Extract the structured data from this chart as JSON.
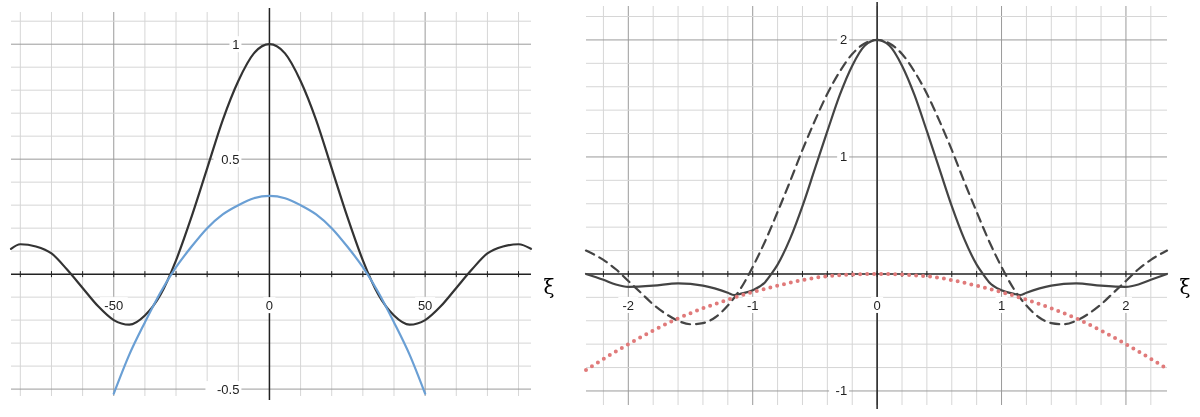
{
  "chart_data": [
    {
      "type": "line",
      "xlabel": "ξ",
      "xlim": [
        -83,
        84
      ],
      "ylim": [
        -0.53,
        1.14
      ],
      "grid": true,
      "xticks": [
        {
          "value": -80,
          "label": null
        },
        {
          "value": -70,
          "label": null
        },
        {
          "value": -60,
          "label": null
        },
        -50,
        {
          "value": -40,
          "label": null
        },
        {
          "value": -30,
          "label": null
        },
        {
          "value": -20,
          "label": null
        },
        {
          "value": -10,
          "label": null
        },
        0,
        {
          "value": 10,
          "label": null
        },
        {
          "value": 20,
          "label": null
        },
        {
          "value": 30,
          "label": null
        },
        {
          "value": 40,
          "label": null
        },
        50,
        {
          "value": 60,
          "label": null
        },
        {
          "value": 70,
          "label": null
        },
        {
          "value": 80,
          "label": null
        }
      ],
      "yticks": [
        -0.5,
        {
          "value": -0.4,
          "label": null
        },
        {
          "value": -0.3,
          "label": null
        },
        {
          "value": -0.2,
          "label": null
        },
        {
          "value": -0.1,
          "label": null
        },
        {
          "value": 0.1,
          "label": null
        },
        {
          "value": 0.2,
          "label": null
        },
        {
          "value": 0.3,
          "label": null
        },
        {
          "value": 0.4,
          "label": null
        },
        0.5,
        {
          "value": 0.6,
          "label": null
        },
        {
          "value": 0.7,
          "label": null
        },
        {
          "value": 0.8,
          "label": null
        },
        {
          "value": 0.9,
          "label": null
        },
        1,
        {
          "value": 1.1,
          "label": null
        }
      ],
      "series": [
        {
          "color": "#333333",
          "line_style": "solid",
          "x": [
            -83,
            -80,
            -75,
            -70,
            -65,
            -60,
            -55,
            -50,
            -45,
            -40,
            -35,
            -30,
            -25,
            -20,
            -15,
            -10,
            -5,
            0,
            5,
            10,
            15,
            20,
            25,
            30,
            35,
            40,
            45,
            50,
            55,
            60,
            65,
            70,
            75,
            80,
            84
          ],
          "values": [
            0.11,
            0.13,
            0.12,
            0.09,
            0.02,
            -0.06,
            -0.14,
            -0.2,
            -0.22,
            -0.18,
            -0.09,
            0.06,
            0.25,
            0.46,
            0.67,
            0.84,
            0.96,
            1,
            0.96,
            0.84,
            0.67,
            0.46,
            0.25,
            0.06,
            -0.09,
            -0.18,
            -0.22,
            -0.2,
            -0.14,
            -0.06,
            0.02,
            0.09,
            0.12,
            0.13,
            0.11
          ]
        },
        {
          "color": "#6a9fd4",
          "line_style": "solid",
          "x": [
            -50,
            -45,
            -40,
            -35,
            -30,
            -25,
            -20,
            -15,
            -10,
            -5,
            0,
            5,
            10,
            15,
            20,
            25,
            30,
            35,
            40,
            45,
            50
          ],
          "values": [
            -0.52,
            -0.35,
            -0.21,
            -0.08,
            0.03,
            0.12,
            0.2,
            0.26,
            0.3,
            0.33,
            0.34,
            0.33,
            0.3,
            0.26,
            0.2,
            0.12,
            0.03,
            -0.08,
            -0.21,
            -0.35,
            -0.52
          ]
        }
      ]
    },
    {
      "type": "line",
      "xlabel": "ξ",
      "xlim": [
        -2.34,
        2.33
      ],
      "ylim": [
        -1.12,
        2.29
      ],
      "grid": true,
      "xticks": [
        {
          "value": -2.2,
          "label": null
        },
        -2,
        {
          "value": -1.8,
          "label": null
        },
        {
          "value": -1.6,
          "label": null
        },
        {
          "value": -1.4,
          "label": null
        },
        {
          "value": -1.2,
          "label": null
        },
        -1,
        {
          "value": -0.8,
          "label": null
        },
        {
          "value": -0.6,
          "label": null
        },
        {
          "value": -0.4,
          "label": null
        },
        {
          "value": -0.2,
          "label": null
        },
        0,
        {
          "value": 0.2,
          "label": null
        },
        {
          "value": 0.4,
          "label": null
        },
        {
          "value": 0.6,
          "label": null
        },
        {
          "value": 0.8,
          "label": null
        },
        1,
        {
          "value": 1.2,
          "label": null
        },
        {
          "value": 1.4,
          "label": null
        },
        {
          "value": 1.6,
          "label": null
        },
        {
          "value": 1.8,
          "label": null
        },
        2,
        {
          "value": 2.2,
          "label": null
        }
      ],
      "yticks": [
        -1,
        {
          "value": -0.8,
          "label": null
        },
        {
          "value": -0.6,
          "label": null
        },
        {
          "value": -0.4,
          "label": null
        },
        {
          "value": -0.2,
          "label": null
        },
        {
          "value": 0.2,
          "label": null
        },
        {
          "value": 0.4,
          "label": null
        },
        {
          "value": 0.6,
          "label": null
        },
        {
          "value": 0.8,
          "label": null
        },
        1,
        {
          "value": 1.2,
          "label": null
        },
        {
          "value": 1.4,
          "label": null
        },
        {
          "value": 1.6,
          "label": null
        },
        {
          "value": 1.8,
          "label": null
        },
        2,
        {
          "value": 2.2,
          "label": null
        }
      ],
      "series": [
        {
          "color": "#444444",
          "line_style": "solid",
          "x": [
            -2.34,
            -2.2,
            -2.1,
            -2,
            -1.8,
            -1.6,
            -1.4,
            -1.2,
            -1.15,
            -1.1,
            -1,
            -0.9,
            -0.85,
            -0.8,
            -0.7,
            -0.6,
            -0.5,
            -0.4,
            -0.3,
            -0.2,
            -0.1,
            0,
            0.1,
            0.2,
            0.3,
            0.4,
            0.5,
            0.6,
            0.7,
            0.8,
            0.85,
            0.9,
            1,
            1.1,
            1.15,
            1.2,
            1.4,
            1.6,
            1.8,
            2,
            2.1,
            2.2,
            2.33
          ],
          "values": [
            0,
            -0.05,
            -0.09,
            -0.11,
            -0.1,
            -0.08,
            -0.1,
            -0.16,
            -0.18,
            -0.17,
            -0.14,
            -0.07,
            0,
            0.08,
            0.3,
            0.58,
            0.9,
            1.22,
            1.53,
            1.78,
            1.95,
            2,
            1.95,
            1.78,
            1.53,
            1.22,
            0.9,
            0.58,
            0.3,
            0.08,
            0,
            -0.07,
            -0.14,
            -0.17,
            -0.18,
            -0.16,
            -0.1,
            -0.08,
            -0.1,
            -0.11,
            -0.09,
            -0.05,
            0
          ]
        },
        {
          "color": "#444444",
          "line_style": "dashed",
          "x": [
            -2.34,
            -2.2,
            -2.1,
            -2,
            -1.9,
            -1.8,
            -1.7,
            -1.6,
            -1.5,
            -1.4,
            -1.3,
            -1.2,
            -1.1,
            -1,
            -0.9,
            -0.8,
            -0.7,
            -0.6,
            -0.5,
            -0.4,
            -0.3,
            -0.2,
            -0.1,
            0,
            0.1,
            0.2,
            0.3,
            0.4,
            0.5,
            0.6,
            0.7,
            0.8,
            0.9,
            1,
            1.1,
            1.2,
            1.3,
            1.4,
            1.5,
            1.6,
            1.7,
            1.8,
            1.9,
            2,
            2.1,
            2.2,
            2.33
          ],
          "values": [
            0.2,
            0.12,
            0.04,
            -0.06,
            -0.16,
            -0.26,
            -0.34,
            -0.4,
            -0.43,
            -0.42,
            -0.37,
            -0.27,
            -0.13,
            0.06,
            0.28,
            0.53,
            0.79,
            1.06,
            1.31,
            1.54,
            1.73,
            1.88,
            1.97,
            2,
            1.97,
            1.88,
            1.73,
            1.54,
            1.31,
            1.06,
            0.79,
            0.53,
            0.28,
            0.06,
            -0.13,
            -0.27,
            -0.37,
            -0.42,
            -0.43,
            -0.4,
            -0.34,
            -0.26,
            -0.16,
            -0.06,
            0.04,
            0.12,
            0.2
          ]
        },
        {
          "color": "#e07a7a",
          "line_style": "dotted",
          "x": [
            -2.34,
            -2,
            -1.6,
            -1.2,
            -0.8,
            -0.4,
            0,
            0.4,
            0.8,
            1.2,
            1.6,
            2,
            2.33
          ],
          "values": [
            -0.82,
            -0.6,
            -0.38,
            -0.22,
            -0.1,
            -0.02,
            0,
            -0.02,
            -0.1,
            -0.22,
            -0.38,
            -0.6,
            -0.81
          ]
        }
      ]
    }
  ]
}
